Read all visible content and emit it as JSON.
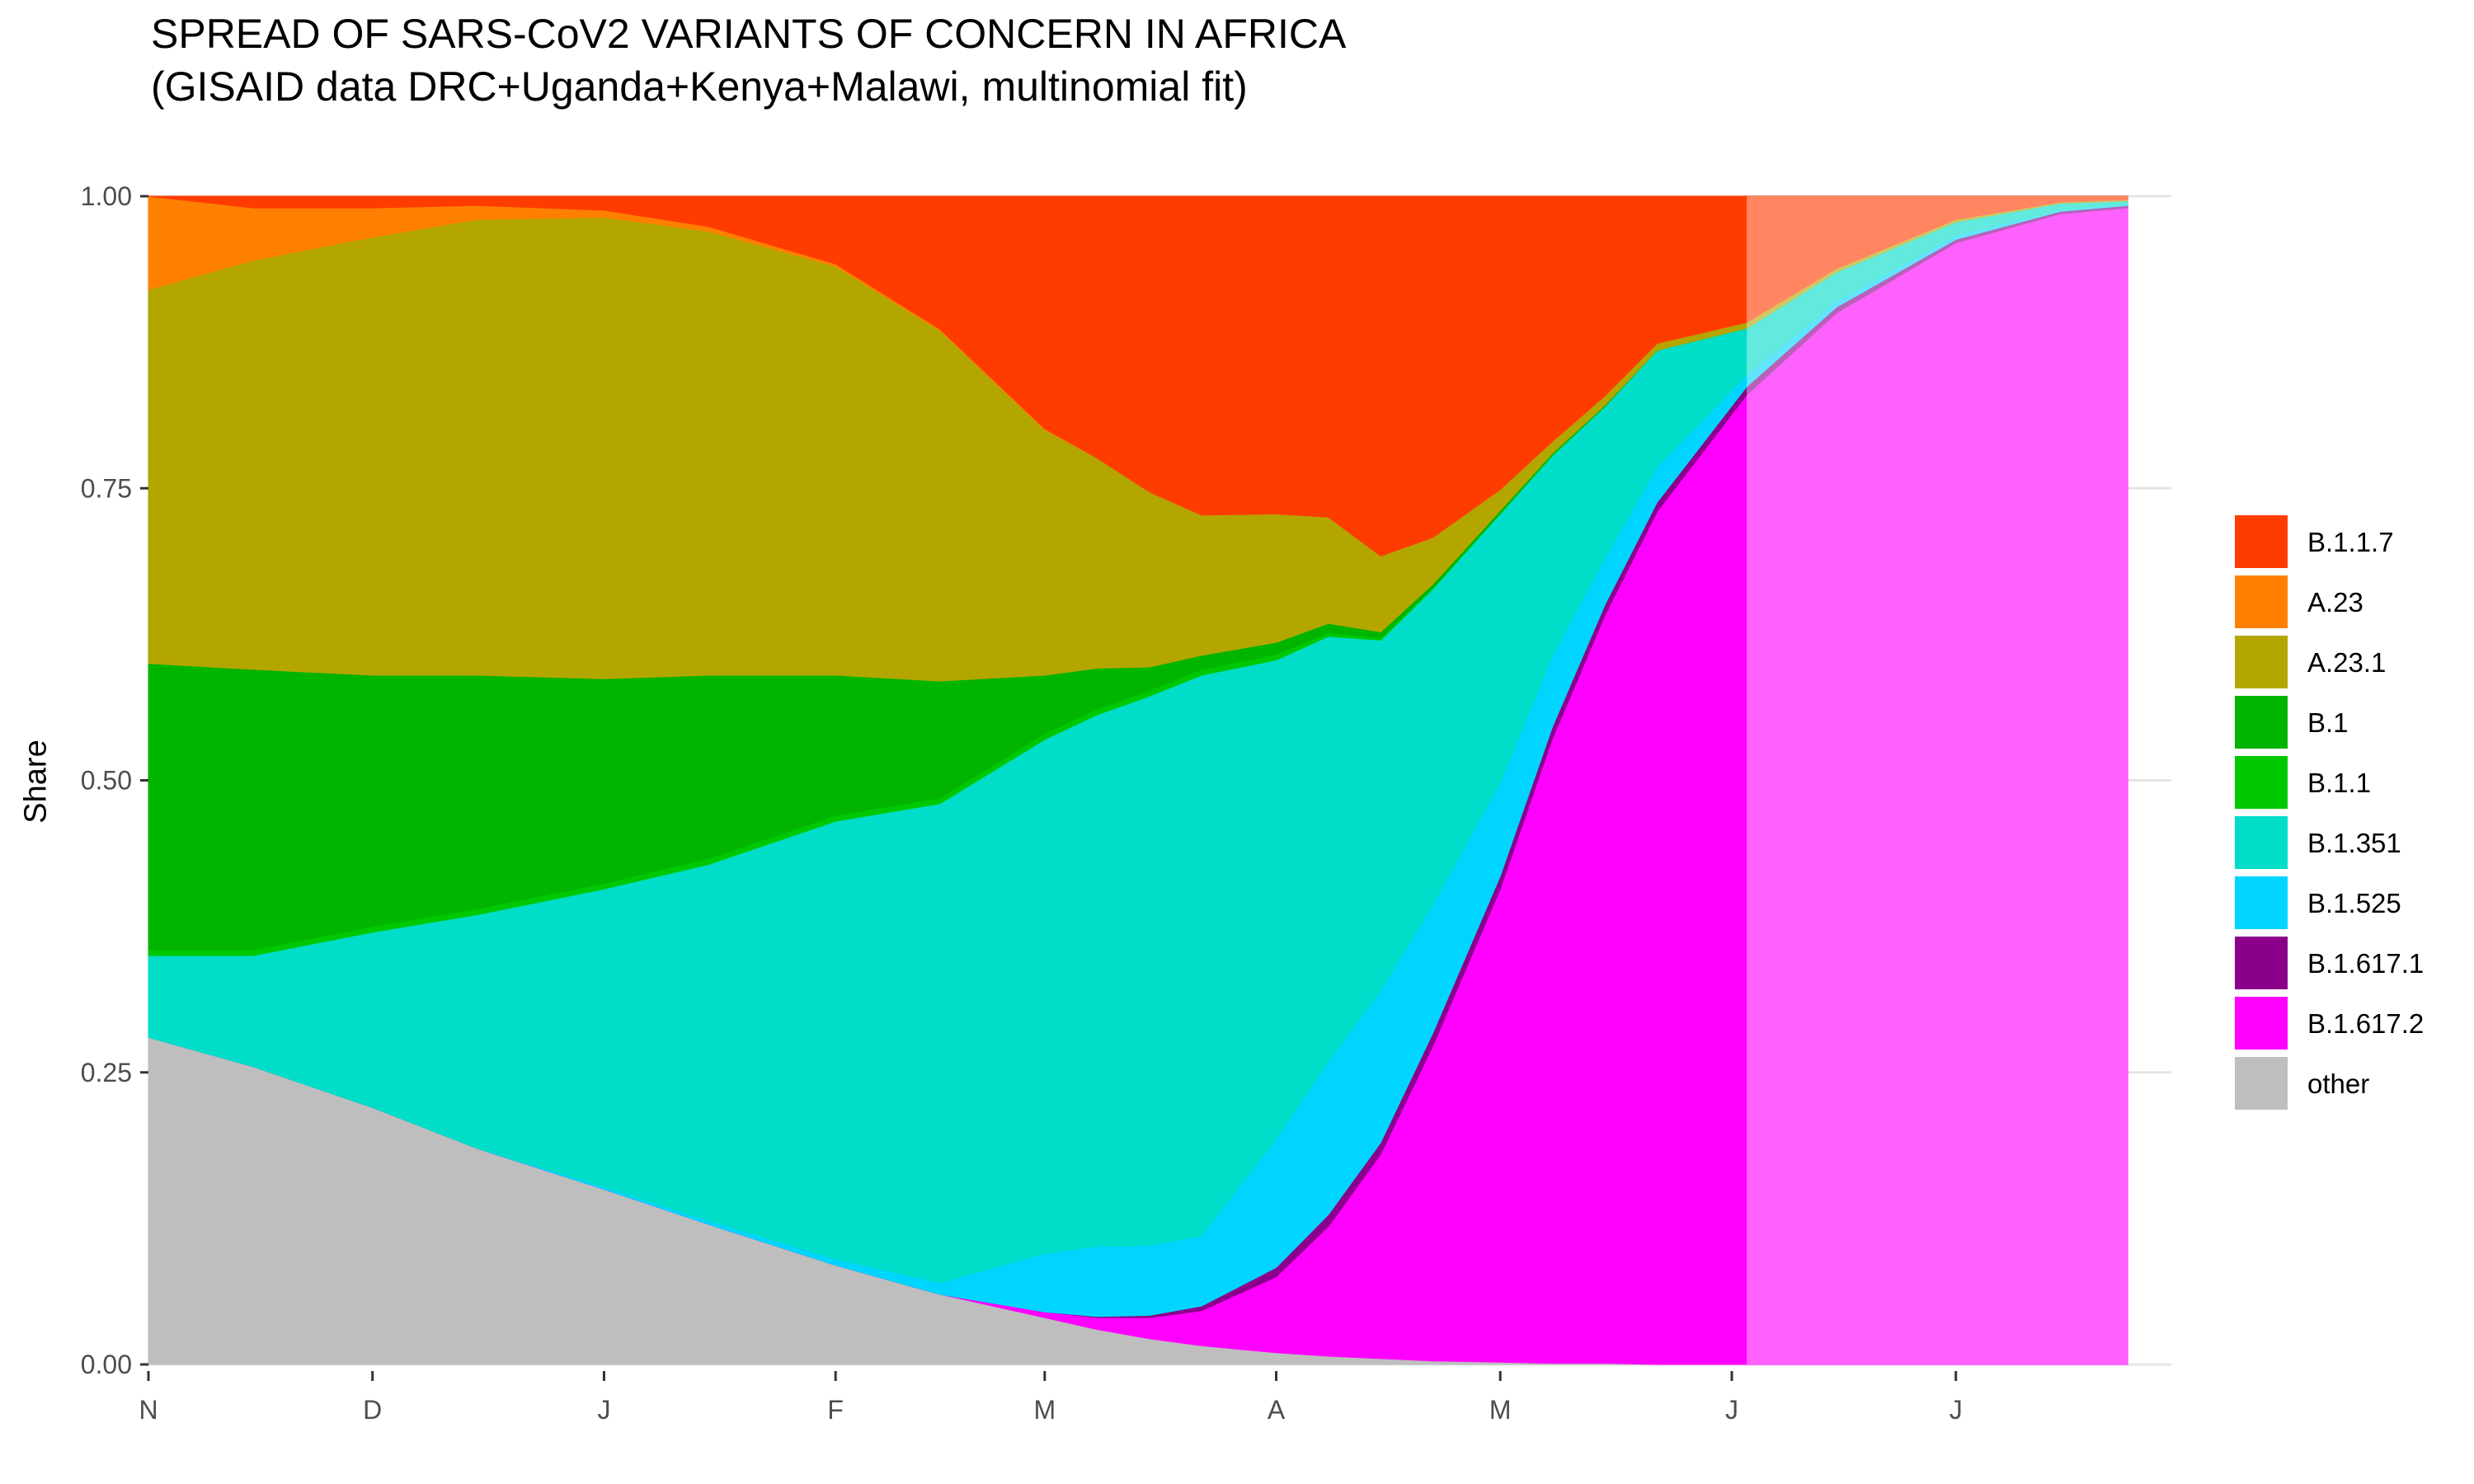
{
  "title": {
    "line1": "SPREAD OF SARS-CoV2 VARIANTS OF CONCERN IN AFRICA",
    "line2": "(GISAID data DRC+Uganda+Kenya+Malawi, multinomial fit)"
  },
  "chart_data": {
    "type": "area",
    "stacked": true,
    "normalized": true,
    "title": "SPREAD OF SARS-CoV2 VARIANTS OF CONCERN IN AFRICA",
    "subtitle": "(GISAID data DRC+Uganda+Kenya+Malawi, multinomial fit)",
    "xlabel": "",
    "ylabel": "Share",
    "xlim": [
      "2020-11-01",
      "2021-07-24"
    ],
    "ylim": [
      0,
      1
    ],
    "x_ticks": [
      {
        "date": "2020-11-01",
        "label": "N"
      },
      {
        "date": "2020-12-01",
        "label": "D"
      },
      {
        "date": "2021-01-01",
        "label": "J"
      },
      {
        "date": "2021-02-01",
        "label": "F"
      },
      {
        "date": "2021-03-01",
        "label": "M"
      },
      {
        "date": "2021-04-01",
        "label": "A"
      },
      {
        "date": "2021-05-01",
        "label": "M"
      },
      {
        "date": "2021-06-01",
        "label": "J"
      },
      {
        "date": "2021-07-01",
        "label": "J"
      }
    ],
    "y_ticks": [
      {
        "value": 0,
        "label": "0.00"
      },
      {
        "value": 0.25,
        "label": "0.25"
      },
      {
        "value": 0.5,
        "label": "0.50"
      },
      {
        "value": 0.75,
        "label": "0.75"
      },
      {
        "value": 1,
        "label": "1.00"
      }
    ],
    "projection_start": "2021-06-03",
    "grid": true,
    "legend_position": "right",
    "x": [
      "2020-11-01",
      "2020-11-15",
      "2020-12-01",
      "2020-12-15",
      "2021-01-01",
      "2021-01-15",
      "2021-02-01",
      "2021-02-15",
      "2021-03-01",
      "2021-03-08",
      "2021-03-15",
      "2021-03-22",
      "2021-04-01",
      "2021-04-08",
      "2021-04-15",
      "2021-04-22",
      "2021-05-01",
      "2021-05-08",
      "2021-05-15",
      "2021-05-22",
      "2021-06-03",
      "2021-06-15",
      "2021-07-01",
      "2021-07-15",
      "2021-07-24"
    ],
    "series": [
      {
        "name": "other",
        "color": "#BEBEBE",
        "values": [
          0.28,
          0.255,
          0.22,
          0.185,
          0.15,
          0.12,
          0.085,
          0.06,
          0.04,
          0.03,
          0.022,
          0.016,
          0.01,
          0.007,
          0.005,
          0.003,
          0.002,
          0.001,
          0.001,
          0,
          0,
          0,
          0,
          0,
          0
        ]
      },
      {
        "name": "B.1.617.2",
        "color": "#FF00FF",
        "values": [
          0,
          0,
          0,
          0,
          0,
          0,
          0,
          0,
          0.005,
          0.01,
          0.018,
          0.03,
          0.065,
          0.11,
          0.175,
          0.27,
          0.405,
          0.53,
          0.64,
          0.73,
          0.83,
          0.9,
          0.96,
          0.985,
          0.99
        ]
      },
      {
        "name": "B.1.617.1",
        "color": "#8B008B",
        "values": [
          0,
          0,
          0,
          0,
          0,
          0,
          0,
          0,
          0,
          0.001,
          0.002,
          0.004,
          0.008,
          0.01,
          0.01,
          0.011,
          0.011,
          0.01,
          0.009,
          0.008,
          0.007,
          0.005,
          0.003,
          0.002,
          0.002
        ]
      },
      {
        "name": "B.1.525",
        "color": "#00D5FF",
        "values": [
          0,
          0,
          0,
          0,
          0.002,
          0.003,
          0.005,
          0.01,
          0.05,
          0.06,
          0.06,
          0.06,
          0.11,
          0.13,
          0.13,
          0.11,
          0.08,
          0.06,
          0.04,
          0.03,
          0.01,
          0.005,
          0.003,
          0.001,
          0.001
        ]
      },
      {
        "name": "B.1.351",
        "color": "#00DDC8",
        "values": [
          0.07,
          0.095,
          0.15,
          0.2,
          0.255,
          0.305,
          0.375,
          0.41,
          0.44,
          0.455,
          0.47,
          0.48,
          0.41,
          0.36,
          0.3,
          0.27,
          0.23,
          0.17,
          0.13,
          0.1,
          0.04,
          0.025,
          0.012,
          0.006,
          0.003
        ]
      },
      {
        "name": "B.1.1",
        "color": "#00C800",
        "values": [
          0.005,
          0.005,
          0.005,
          0.005,
          0.005,
          0.005,
          0.005,
          0.005,
          0.005,
          0.005,
          0.005,
          0.005,
          0.005,
          0.003,
          0.002,
          0.001,
          0.001,
          0.001,
          0,
          0,
          0,
          0,
          0,
          0,
          0
        ]
      },
      {
        "name": "B.1",
        "color": "#00B400",
        "values": [
          0.245,
          0.24,
          0.215,
          0.2,
          0.175,
          0.157,
          0.12,
          0.1,
          0.05,
          0.035,
          0.02,
          0.012,
          0.01,
          0.008,
          0.005,
          0.003,
          0.002,
          0.001,
          0.001,
          0,
          0,
          0,
          0,
          0,
          0
        ]
      },
      {
        "name": "A.23.1",
        "color": "#B3A600",
        "values": [
          0.32,
          0.35,
          0.375,
          0.39,
          0.395,
          0.38,
          0.35,
          0.3,
          0.21,
          0.18,
          0.15,
          0.12,
          0.11,
          0.09,
          0.065,
          0.04,
          0.018,
          0.01,
          0.008,
          0.006,
          0.005,
          0.003,
          0.002,
          0.001,
          0.001
        ]
      },
      {
        "name": "A.23",
        "color": "#FF8000",
        "values": [
          0.08,
          0.045,
          0.025,
          0.012,
          0.006,
          0.004,
          0.002,
          0.001,
          0.001,
          0,
          0,
          0,
          0,
          0,
          0,
          0,
          0,
          0,
          0,
          0,
          0,
          0,
          0,
          0,
          0
        ]
      },
      {
        "name": "B.1.1.7",
        "color": "#FF3C00",
        "values": [
          0,
          0.01,
          0.01,
          0.008,
          0.012,
          0.026,
          0.058,
          0.114,
          0.199,
          0.224,
          0.253,
          0.273,
          0.272,
          0.272,
          0.308,
          0.292,
          0.251,
          0.208,
          0.171,
          0.126,
          0.108,
          0.062,
          0.02,
          0.005,
          0.003
        ]
      }
    ],
    "legend": [
      "B.1.1.7",
      "A.23",
      "A.23.1",
      "B.1",
      "B.1.1",
      "B.1.351",
      "B.1.525",
      "B.1.617.1",
      "B.1.617.2",
      "other"
    ]
  }
}
